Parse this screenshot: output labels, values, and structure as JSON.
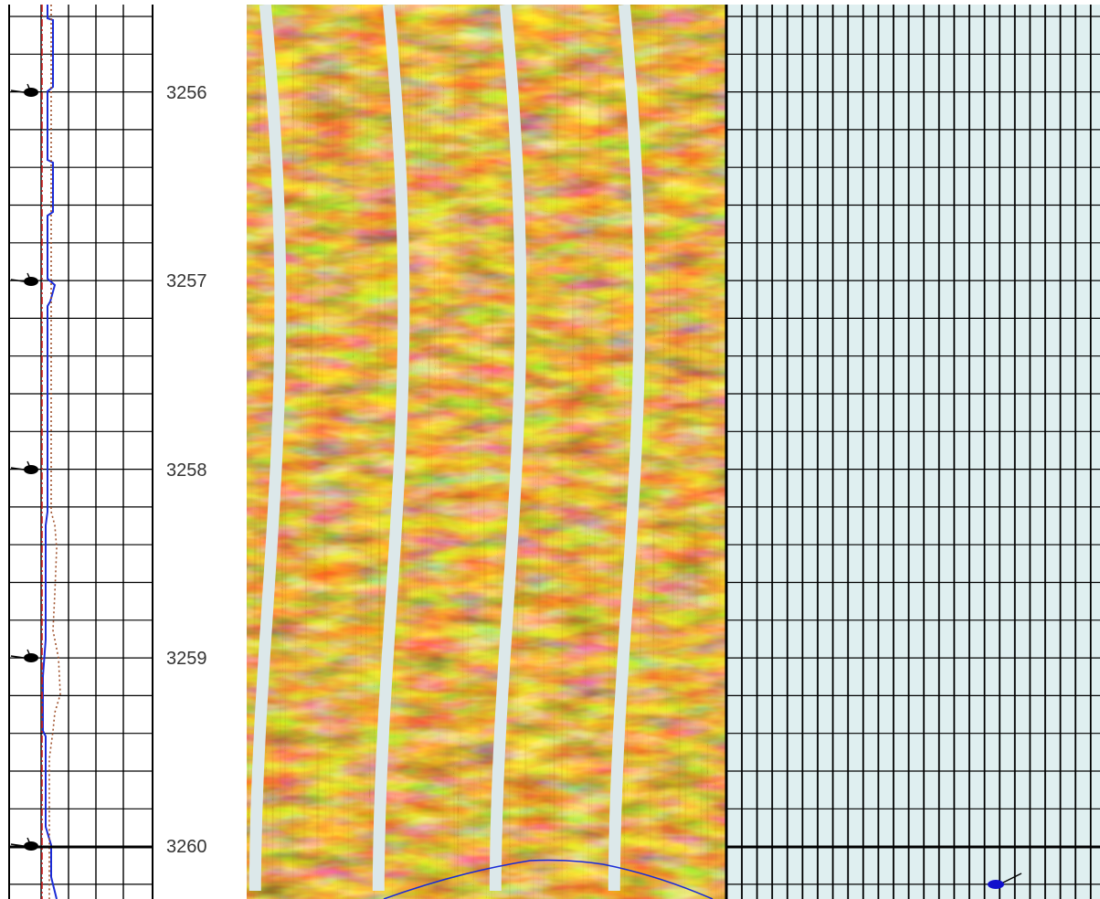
{
  "depth_track": {
    "labels": [
      "3256",
      "3257",
      "3258",
      "3259",
      "3260"
    ]
  },
  "colors": {
    "grid": "#000000",
    "right_track_bg": "#dfeff0",
    "image_dark": "#3a1700",
    "image_mid": "#b86a10",
    "image_light": "#ffd466",
    "pad_gap": "#dce8ea",
    "curve_blue": "#1a2bd6",
    "curve_red": "#d12020",
    "curve_brown": "#a0522d",
    "tadpole": "#000000",
    "tadpole_blue": "#1010cc"
  },
  "icons": {
    "dip_marker": "tadpole-icon"
  }
}
